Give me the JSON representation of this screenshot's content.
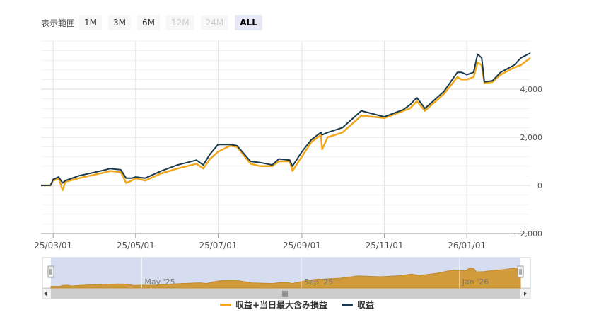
{
  "range_selector": {
    "label": "表示範囲",
    "buttons": [
      {
        "label": "1M",
        "state": "normal"
      },
      {
        "label": "3M",
        "state": "normal"
      },
      {
        "label": "6M",
        "state": "normal"
      },
      {
        "label": "12M",
        "state": "disabled"
      },
      {
        "label": "24M",
        "state": "disabled"
      },
      {
        "label": "ALL",
        "state": "active"
      }
    ]
  },
  "chart_data": {
    "type": "line",
    "title": "",
    "xlabel": "",
    "ylabel": "",
    "x_start": "2025-02-20",
    "x_end": "2026-02-17",
    "ylim": [
      -2000,
      6000
    ],
    "y_ticks": [
      -2000,
      0,
      2000,
      4000
    ],
    "y_tick_labels": [
      "−2,000",
      "0",
      "2,000",
      "4,000"
    ],
    "x_ticks": [
      "2025-03-01",
      "2025-05-01",
      "2025-07-01",
      "2025-09-01",
      "2025-11-01",
      "2026-01-01"
    ],
    "x_tick_labels": [
      "25/03/01",
      "25/05/01",
      "25/07/01",
      "25/09/01",
      "25/11/01",
      "26/01/01"
    ],
    "grid": true,
    "legend_position": "bottom-center",
    "series": [
      {
        "name": "収益+当日最大含み損益",
        "color": "#f0a81c",
        "points": [
          [
            "2025-02-20",
            0
          ],
          [
            "2025-02-27",
            0
          ],
          [
            "2025-03-01",
            200
          ],
          [
            "2025-03-05",
            300
          ],
          [
            "2025-03-08",
            -200
          ],
          [
            "2025-03-10",
            150
          ],
          [
            "2025-03-20",
            300
          ],
          [
            "2025-04-01",
            450
          ],
          [
            "2025-04-09",
            550
          ],
          [
            "2025-04-12",
            600
          ],
          [
            "2025-04-20",
            550
          ],
          [
            "2025-04-24",
            100
          ],
          [
            "2025-04-28",
            200
          ],
          [
            "2025-05-01",
            300
          ],
          [
            "2025-05-08",
            200
          ],
          [
            "2025-05-20",
            500
          ],
          [
            "2025-06-01",
            700
          ],
          [
            "2025-06-15",
            900
          ],
          [
            "2025-06-20",
            700
          ],
          [
            "2025-06-25",
            1100
          ],
          [
            "2025-07-01",
            1400
          ],
          [
            "2025-07-10",
            1650
          ],
          [
            "2025-07-15",
            1600
          ],
          [
            "2025-07-25",
            900
          ],
          [
            "2025-08-01",
            800
          ],
          [
            "2025-08-10",
            800
          ],
          [
            "2025-08-15",
            1000
          ],
          [
            "2025-08-23",
            1000
          ],
          [
            "2025-08-25",
            600
          ],
          [
            "2025-09-01",
            1200
          ],
          [
            "2025-09-08",
            1800
          ],
          [
            "2025-09-15",
            2100
          ],
          [
            "2025-09-16",
            1500
          ],
          [
            "2025-09-20",
            2000
          ],
          [
            "2025-10-01",
            2200
          ],
          [
            "2025-10-15",
            2900
          ],
          [
            "2025-11-01",
            2800
          ],
          [
            "2025-11-15",
            3100
          ],
          [
            "2025-11-20",
            3200
          ],
          [
            "2025-11-25",
            3500
          ],
          [
            "2025-12-01",
            3100
          ],
          [
            "2025-12-15",
            3800
          ],
          [
            "2025-12-25",
            4500
          ],
          [
            "2025-12-28",
            4400
          ],
          [
            "2026-01-01",
            4400
          ],
          [
            "2026-01-06",
            4500
          ],
          [
            "2026-01-09",
            5100
          ],
          [
            "2026-01-12",
            5000
          ],
          [
            "2026-01-14",
            4250
          ],
          [
            "2026-01-20",
            4300
          ],
          [
            "2026-01-26",
            4600
          ],
          [
            "2026-02-05",
            4900
          ],
          [
            "2026-02-10",
            5000
          ],
          [
            "2026-02-17",
            5300
          ]
        ]
      },
      {
        "name": "収益",
        "color": "#1b3a4b",
        "points": [
          [
            "2025-02-20",
            0
          ],
          [
            "2025-02-27",
            0
          ],
          [
            "2025-03-01",
            250
          ],
          [
            "2025-03-05",
            350
          ],
          [
            "2025-03-08",
            100
          ],
          [
            "2025-03-10",
            200
          ],
          [
            "2025-03-20",
            400
          ],
          [
            "2025-04-01",
            550
          ],
          [
            "2025-04-09",
            650
          ],
          [
            "2025-04-12",
            700
          ],
          [
            "2025-04-20",
            650
          ],
          [
            "2025-04-24",
            300
          ],
          [
            "2025-04-28",
            300
          ],
          [
            "2025-05-01",
            350
          ],
          [
            "2025-05-08",
            300
          ],
          [
            "2025-05-20",
            600
          ],
          [
            "2025-06-01",
            850
          ],
          [
            "2025-06-15",
            1050
          ],
          [
            "2025-06-20",
            850
          ],
          [
            "2025-06-25",
            1300
          ],
          [
            "2025-07-01",
            1700
          ],
          [
            "2025-07-10",
            1700
          ],
          [
            "2025-07-15",
            1650
          ],
          [
            "2025-07-25",
            1000
          ],
          [
            "2025-08-01",
            950
          ],
          [
            "2025-08-10",
            850
          ],
          [
            "2025-08-15",
            1100
          ],
          [
            "2025-08-23",
            1050
          ],
          [
            "2025-08-25",
            800
          ],
          [
            "2025-09-01",
            1400
          ],
          [
            "2025-09-08",
            1900
          ],
          [
            "2025-09-15",
            2200
          ],
          [
            "2025-09-16",
            2100
          ],
          [
            "2025-09-20",
            2200
          ],
          [
            "2025-10-01",
            2400
          ],
          [
            "2025-10-15",
            3100
          ],
          [
            "2025-11-01",
            2850
          ],
          [
            "2025-11-15",
            3150
          ],
          [
            "2025-11-20",
            3350
          ],
          [
            "2025-11-25",
            3650
          ],
          [
            "2025-12-01",
            3200
          ],
          [
            "2025-12-15",
            3900
          ],
          [
            "2025-12-25",
            4700
          ],
          [
            "2025-12-28",
            4700
          ],
          [
            "2026-01-01",
            4600
          ],
          [
            "2026-01-06",
            4700
          ],
          [
            "2026-01-09",
            5450
          ],
          [
            "2026-01-12",
            5300
          ],
          [
            "2026-01-14",
            4300
          ],
          [
            "2026-01-20",
            4350
          ],
          [
            "2026-01-26",
            4700
          ],
          [
            "2026-02-05",
            5000
          ],
          [
            "2026-02-10",
            5300
          ],
          [
            "2026-02-17",
            5500
          ]
        ]
      }
    ],
    "navigator": {
      "labels": [
        {
          "text": "May '25",
          "date": "2025-05-01"
        },
        {
          "text": "Sep '25",
          "date": "2025-09-01"
        },
        {
          "text": "Jan '26",
          "date": "2026-01-01"
        }
      ],
      "fill_color": "#d19a3a",
      "mask_color": "#d3d9ee"
    }
  }
}
